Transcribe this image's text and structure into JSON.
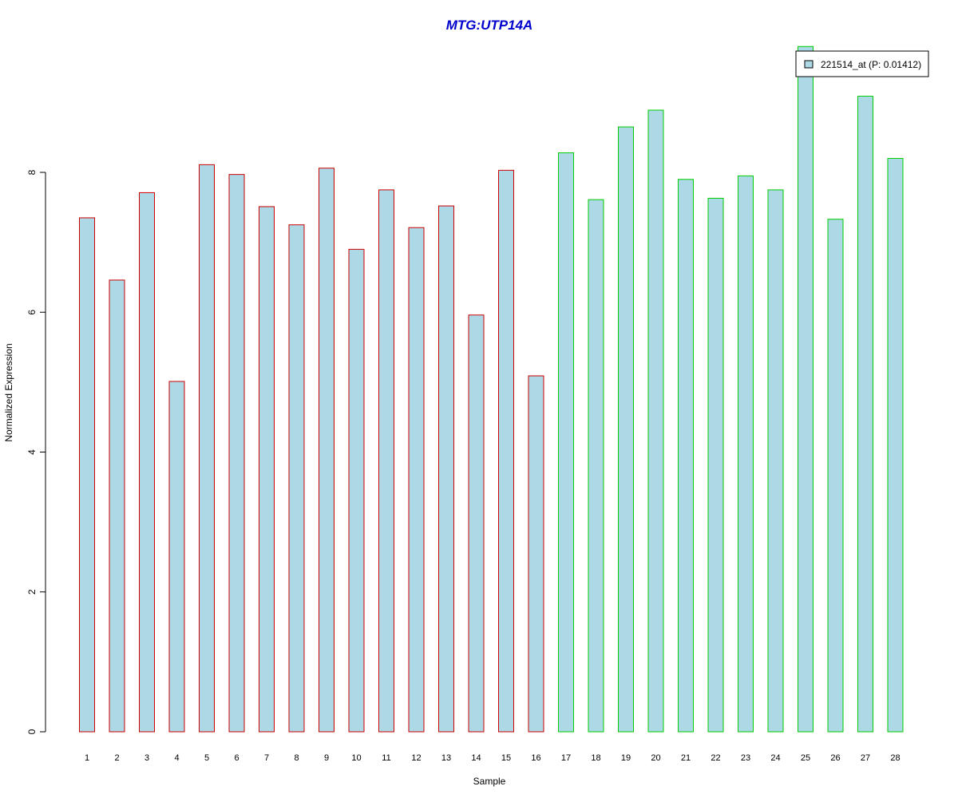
{
  "chart_data": {
    "type": "bar",
    "title": "MTG:UTP14A",
    "xlabel": "Sample",
    "ylabel": "Normalized Expression",
    "ylim": [
      0,
      9.8
    ],
    "yticks": [
      0,
      2,
      4,
      6,
      8
    ],
    "grid": false,
    "legend_position": "top-right",
    "colors": {
      "title": "#0000cc",
      "bar_fill": "#add8e6",
      "group1_border": "#cc0000",
      "group2_border": "#00cc00",
      "axis": "#000000"
    },
    "categories": [
      "1",
      "2",
      "3",
      "4",
      "5",
      "6",
      "7",
      "8",
      "9",
      "10",
      "11",
      "12",
      "13",
      "14",
      "15",
      "16",
      "17",
      "18",
      "19",
      "20",
      "21",
      "22",
      "23",
      "24",
      "25",
      "26",
      "27",
      "28"
    ],
    "series": [
      {
        "name": "221514_at (P: 0.01412)",
        "values": [
          7.35,
          6.46,
          7.71,
          5.01,
          8.11,
          7.97,
          7.51,
          7.25,
          8.06,
          6.9,
          7.75,
          7.21,
          7.52,
          5.96,
          8.03,
          5.09,
          8.28,
          7.61,
          8.65,
          8.89,
          7.9,
          7.63,
          7.95,
          7.75,
          9.8,
          7.33,
          9.09,
          8.2
        ],
        "groups": [
          1,
          1,
          1,
          1,
          1,
          1,
          1,
          1,
          1,
          1,
          1,
          1,
          1,
          1,
          1,
          1,
          2,
          2,
          2,
          2,
          2,
          2,
          2,
          2,
          2,
          2,
          2,
          2
        ]
      }
    ]
  }
}
